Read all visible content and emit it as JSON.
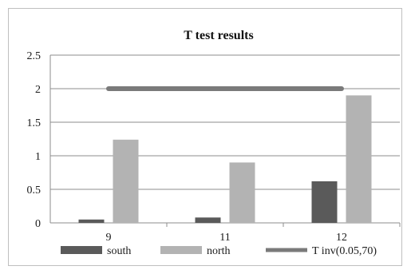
{
  "chart_data": {
    "type": "bar",
    "title": "T test results",
    "xlabel": "",
    "ylabel": "",
    "categories": [
      "9",
      "11",
      "12"
    ],
    "ylim": [
      0,
      2.5
    ],
    "yticks": [
      "0",
      "0.5",
      "1",
      "1.5",
      "2",
      "2.5"
    ],
    "grid": true,
    "legend_position": "bottom",
    "series": [
      {
        "name": "south",
        "type": "bar",
        "color": "#5a5a5a",
        "values": [
          0.05,
          0.08,
          0.62
        ]
      },
      {
        "name": "north",
        "type": "bar",
        "color": "#b3b3b3",
        "values": [
          1.24,
          0.9,
          1.9
        ]
      },
      {
        "name": "T inv(0.05,70)",
        "type": "line",
        "color": "#7a7a7a",
        "values": [
          2.0,
          2.0,
          2.0
        ]
      }
    ]
  }
}
